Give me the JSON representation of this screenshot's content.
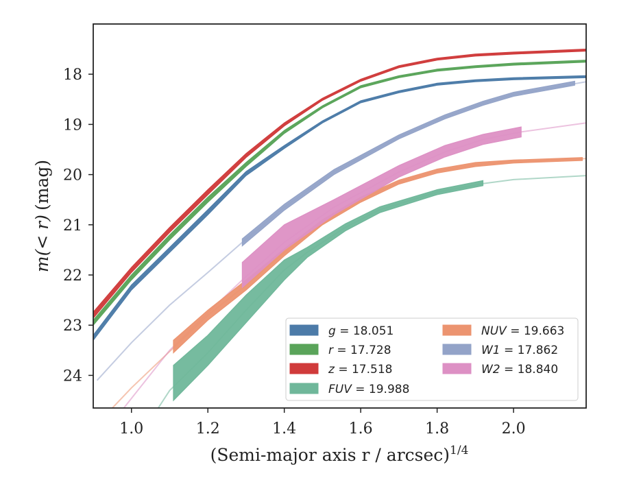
{
  "chart_data": {
    "type": "line",
    "xlabel": "(Semi-major axis r / arcsec)",
    "xlabel_exp": "1/4",
    "ylabel_main": "m(< r)",
    "ylabel_unit": "(mag)",
    "xlim": [
      0.9,
      2.19
    ],
    "ylim": [
      24.65,
      17.0
    ],
    "xticks": [
      1.0,
      1.2,
      1.4,
      1.6,
      1.8,
      2.0
    ],
    "xtick_labels": [
      "1.0",
      "1.2",
      "1.4",
      "1.6",
      "1.8",
      "2.0"
    ],
    "yticks": [
      18,
      19,
      20,
      21,
      22,
      23,
      24
    ],
    "ytick_labels": [
      "18",
      "19",
      "20",
      "21",
      "22",
      "23",
      "24"
    ],
    "grid": false,
    "legend_position": "lower-right",
    "series": [
      {
        "key": "g",
        "band": "g",
        "value": "18.051",
        "color": "#4c7ba8",
        "full": [
          [
            0.9,
            23.25
          ],
          [
            1.0,
            22.25
          ],
          [
            1.1,
            21.5
          ],
          [
            1.2,
            20.75
          ],
          [
            1.3,
            19.98
          ],
          [
            1.4,
            19.45
          ],
          [
            1.5,
            18.95
          ],
          [
            1.6,
            18.55
          ],
          [
            1.7,
            18.35
          ],
          [
            1.8,
            18.2
          ],
          [
            1.9,
            18.13
          ],
          [
            2.0,
            18.09
          ],
          [
            2.19,
            18.05
          ]
        ],
        "band_upper": [
          [
            0.9,
            23.3
          ],
          [
            1.0,
            22.3
          ],
          [
            1.1,
            21.55
          ],
          [
            1.2,
            20.8
          ],
          [
            1.3,
            20.02
          ],
          [
            1.4,
            19.48
          ],
          [
            1.5,
            18.97
          ],
          [
            1.6,
            18.57
          ],
          [
            1.7,
            18.37
          ],
          [
            1.8,
            18.22
          ],
          [
            1.9,
            18.15
          ],
          [
            2.0,
            18.11
          ],
          [
            2.19,
            18.07
          ]
        ],
        "band_lower": [
          [
            0.9,
            23.2
          ],
          [
            1.0,
            22.2
          ],
          [
            1.1,
            21.45
          ],
          [
            1.2,
            20.7
          ],
          [
            1.3,
            19.94
          ],
          [
            1.4,
            19.42
          ],
          [
            1.5,
            18.93
          ],
          [
            1.6,
            18.53
          ],
          [
            1.7,
            18.33
          ],
          [
            1.8,
            18.18
          ],
          [
            1.9,
            18.11
          ],
          [
            2.0,
            18.07
          ],
          [
            2.19,
            18.03
          ]
        ]
      },
      {
        "key": "r",
        "band": "r",
        "value": "17.728",
        "color": "#5aa45a",
        "full": [
          [
            0.9,
            22.95
          ],
          [
            1.0,
            22.05
          ],
          [
            1.1,
            21.25
          ],
          [
            1.2,
            20.5
          ],
          [
            1.3,
            19.8
          ],
          [
            1.4,
            19.15
          ],
          [
            1.5,
            18.65
          ],
          [
            1.6,
            18.25
          ],
          [
            1.7,
            18.05
          ],
          [
            1.8,
            17.92
          ],
          [
            1.9,
            17.85
          ],
          [
            2.0,
            17.8
          ],
          [
            2.19,
            17.74
          ]
        ],
        "band_upper": [
          [
            0.9,
            23.0
          ],
          [
            1.0,
            22.1
          ],
          [
            1.1,
            21.3
          ],
          [
            1.2,
            20.55
          ],
          [
            1.3,
            19.84
          ],
          [
            1.4,
            19.18
          ],
          [
            1.5,
            18.67
          ],
          [
            1.6,
            18.27
          ],
          [
            1.7,
            18.07
          ],
          [
            1.8,
            17.94
          ],
          [
            1.9,
            17.87
          ],
          [
            2.0,
            17.82
          ],
          [
            2.19,
            17.76
          ]
        ],
        "band_lower": [
          [
            0.9,
            22.9
          ],
          [
            1.0,
            22.0
          ],
          [
            1.1,
            21.2
          ],
          [
            1.2,
            20.45
          ],
          [
            1.3,
            19.76
          ],
          [
            1.4,
            19.12
          ],
          [
            1.5,
            18.63
          ],
          [
            1.6,
            18.23
          ],
          [
            1.7,
            18.03
          ],
          [
            1.8,
            17.9
          ],
          [
            1.9,
            17.83
          ],
          [
            2.0,
            17.78
          ],
          [
            2.19,
            17.72
          ]
        ]
      },
      {
        "key": "z",
        "band": "z",
        "value": "17.518",
        "color": "#d03b3b",
        "full": [
          [
            0.9,
            22.8
          ],
          [
            1.0,
            21.9
          ],
          [
            1.1,
            21.1
          ],
          [
            1.2,
            20.35
          ],
          [
            1.3,
            19.62
          ],
          [
            1.4,
            19.0
          ],
          [
            1.5,
            18.5
          ],
          [
            1.6,
            18.12
          ],
          [
            1.7,
            17.85
          ],
          [
            1.8,
            17.7
          ],
          [
            1.9,
            17.62
          ],
          [
            2.0,
            17.58
          ],
          [
            2.19,
            17.52
          ]
        ],
        "band_upper": [
          [
            0.9,
            22.86
          ],
          [
            1.0,
            21.95
          ],
          [
            1.1,
            21.15
          ],
          [
            1.2,
            20.4
          ],
          [
            1.3,
            19.66
          ],
          [
            1.4,
            19.03
          ],
          [
            1.5,
            18.52
          ],
          [
            1.6,
            18.14
          ],
          [
            1.7,
            17.87
          ],
          [
            1.8,
            17.72
          ],
          [
            1.9,
            17.64
          ],
          [
            2.0,
            17.6
          ],
          [
            2.19,
            17.54
          ]
        ],
        "band_lower": [
          [
            0.9,
            22.74
          ],
          [
            1.0,
            21.85
          ],
          [
            1.1,
            21.05
          ],
          [
            1.2,
            20.3
          ],
          [
            1.3,
            19.58
          ],
          [
            1.4,
            18.97
          ],
          [
            1.5,
            18.48
          ],
          [
            1.6,
            18.1
          ],
          [
            1.7,
            17.83
          ],
          [
            1.8,
            17.68
          ],
          [
            1.9,
            17.6
          ],
          [
            2.0,
            17.56
          ],
          [
            2.19,
            17.5
          ]
        ]
      },
      {
        "key": "FUV",
        "band": "FUV",
        "value": "19.988",
        "color": "#6fb79a",
        "full": [
          [
            1.07,
            24.65
          ],
          [
            1.1,
            24.3
          ],
          [
            1.2,
            23.55
          ],
          [
            1.3,
            22.7
          ],
          [
            1.4,
            21.9
          ],
          [
            1.46,
            21.55
          ],
          [
            1.56,
            21.05
          ],
          [
            1.65,
            20.7
          ],
          [
            1.8,
            20.35
          ],
          [
            1.92,
            20.18
          ],
          [
            2.0,
            20.1
          ],
          [
            2.19,
            20.02
          ]
        ],
        "band_upper": [
          [
            1.11,
            24.5
          ],
          [
            1.2,
            23.8
          ],
          [
            1.3,
            22.95
          ],
          [
            1.4,
            22.1
          ],
          [
            1.46,
            21.65
          ],
          [
            1.56,
            21.12
          ],
          [
            1.65,
            20.76
          ],
          [
            1.8,
            20.4
          ],
          [
            1.92,
            20.22
          ]
        ],
        "band_lower": [
          [
            1.11,
            23.8
          ],
          [
            1.2,
            23.2
          ],
          [
            1.3,
            22.4
          ],
          [
            1.4,
            21.7
          ],
          [
            1.46,
            21.45
          ],
          [
            1.56,
            20.98
          ],
          [
            1.65,
            20.64
          ],
          [
            1.8,
            20.3
          ],
          [
            1.92,
            20.12
          ]
        ]
      },
      {
        "key": "NUV",
        "band": "NUV",
        "value": "19.663",
        "color": "#ec9470",
        "full": [
          [
            0.95,
            24.65
          ],
          [
            1.0,
            24.25
          ],
          [
            1.11,
            23.45
          ],
          [
            1.2,
            22.8
          ],
          [
            1.3,
            22.2
          ],
          [
            1.4,
            21.55
          ],
          [
            1.5,
            20.95
          ],
          [
            1.6,
            20.5
          ],
          [
            1.7,
            20.15
          ],
          [
            1.8,
            19.93
          ],
          [
            1.9,
            19.8
          ],
          [
            2.0,
            19.74
          ],
          [
            2.19,
            19.68
          ]
        ],
        "band_upper": [
          [
            1.11,
            23.55
          ],
          [
            1.2,
            22.9
          ],
          [
            1.3,
            22.3
          ],
          [
            1.4,
            21.62
          ],
          [
            1.5,
            21.0
          ],
          [
            1.6,
            20.55
          ],
          [
            1.7,
            20.19
          ],
          [
            1.8,
            19.97
          ],
          [
            1.9,
            19.84
          ],
          [
            2.0,
            19.77
          ],
          [
            2.18,
            19.72
          ]
        ],
        "band_lower": [
          [
            1.11,
            23.3
          ],
          [
            1.2,
            22.7
          ],
          [
            1.3,
            22.1
          ],
          [
            1.4,
            21.48
          ],
          [
            1.5,
            20.9
          ],
          [
            1.6,
            20.45
          ],
          [
            1.7,
            20.11
          ],
          [
            1.8,
            19.89
          ],
          [
            1.9,
            19.76
          ],
          [
            2.0,
            19.71
          ],
          [
            2.18,
            19.66
          ]
        ]
      },
      {
        "key": "W1",
        "band": "W1",
        "value": "17.862",
        "color": "#93a3c8",
        "full": [
          [
            0.91,
            24.1
          ],
          [
            1.0,
            23.35
          ],
          [
            1.1,
            22.6
          ],
          [
            1.2,
            21.95
          ],
          [
            1.29,
            21.35
          ],
          [
            1.4,
            20.65
          ],
          [
            1.53,
            19.95
          ],
          [
            1.7,
            19.25
          ],
          [
            1.82,
            18.85
          ],
          [
            1.92,
            18.58
          ],
          [
            2.0,
            18.4
          ],
          [
            2.19,
            18.15
          ]
        ],
        "band_upper": [
          [
            1.29,
            21.42
          ],
          [
            1.4,
            20.71
          ],
          [
            1.53,
            20.0
          ],
          [
            1.7,
            19.29
          ],
          [
            1.82,
            18.89
          ],
          [
            1.92,
            18.62
          ],
          [
            2.0,
            18.44
          ],
          [
            2.16,
            18.22
          ]
        ],
        "band_lower": [
          [
            1.29,
            21.28
          ],
          [
            1.4,
            20.59
          ],
          [
            1.53,
            19.9
          ],
          [
            1.7,
            19.21
          ],
          [
            1.82,
            18.81
          ],
          [
            1.92,
            18.54
          ],
          [
            2.0,
            18.36
          ],
          [
            2.16,
            18.14
          ]
        ]
      },
      {
        "key": "W2",
        "band": "W2",
        "value": "18.840",
        "color": "#dd90c4",
        "full": [
          [
            0.98,
            24.65
          ],
          [
            1.1,
            23.5
          ],
          [
            1.2,
            22.75
          ],
          [
            1.29,
            22.1
          ],
          [
            1.4,
            21.35
          ],
          [
            1.53,
            20.65
          ],
          [
            1.7,
            19.95
          ],
          [
            1.82,
            19.55
          ],
          [
            1.92,
            19.3
          ],
          [
            2.02,
            19.15
          ],
          [
            2.19,
            18.97
          ]
        ],
        "band_upper": [
          [
            1.29,
            22.25
          ],
          [
            1.4,
            21.5
          ],
          [
            1.53,
            20.8
          ],
          [
            1.7,
            20.05
          ],
          [
            1.82,
            19.65
          ],
          [
            1.92,
            19.4
          ],
          [
            2.02,
            19.25
          ]
        ],
        "band_lower": [
          [
            1.29,
            21.75
          ],
          [
            1.4,
            21.0
          ],
          [
            1.53,
            20.5
          ],
          [
            1.7,
            19.82
          ],
          [
            1.82,
            19.42
          ],
          [
            1.92,
            19.2
          ],
          [
            2.02,
            19.05
          ]
        ]
      }
    ],
    "legend_columns": [
      [
        "g",
        "r",
        "z",
        "FUV"
      ],
      [
        "NUV",
        "W1",
        "W2"
      ]
    ]
  }
}
